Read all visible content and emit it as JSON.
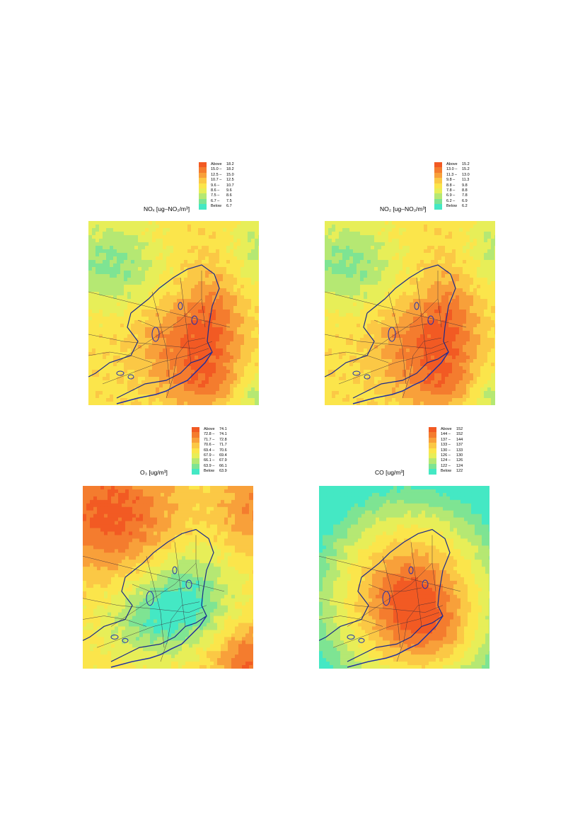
{
  "panels": [
    {
      "id": "nox",
      "title": "NOₓ [ug–NO₂/m³]",
      "legend": [
        {
          "a": "Above",
          "b": "18.2",
          "color": "#f25a23"
        },
        {
          "a": "15.0 –",
          "b": "18.2",
          "color": "#f47c2e"
        },
        {
          "a": "12.5 –",
          "b": "15.0",
          "color": "#f8a03a"
        },
        {
          "a": "10.7 –",
          "b": "12.5",
          "color": "#fbc845"
        },
        {
          "a": "9.6 –",
          "b": "10.7",
          "color": "#fbe54b"
        },
        {
          "a": "8.6 –",
          "b": "9.6",
          "color": "#e7ee58"
        },
        {
          "a": "7.5 –",
          "b": "8.6",
          "color": "#b5e873"
        },
        {
          "a": "6.7 –",
          "b": "7.5",
          "color": "#7ee493"
        },
        {
          "a": "Below",
          "b": "6.7",
          "color": "#44e8c4"
        }
      ]
    },
    {
      "id": "no2",
      "title": "NO₂ [ug–NO₂/m³]",
      "legend": [
        {
          "a": "Above",
          "b": "15.2",
          "color": "#f25a23"
        },
        {
          "a": "13.0 –",
          "b": "15.2",
          "color": "#f47c2e"
        },
        {
          "a": "11.3 –",
          "b": "13.0",
          "color": "#f8a03a"
        },
        {
          "a": "9.8 –",
          "b": "11.3",
          "color": "#fbc845"
        },
        {
          "a": "8.8 –",
          "b": "9.8",
          "color": "#fbe54b"
        },
        {
          "a": "7.8 –",
          "b": "8.8",
          "color": "#e7ee58"
        },
        {
          "a": "6.9 –",
          "b": "7.8",
          "color": "#b5e873"
        },
        {
          "a": "6.2 –",
          "b": "6.9",
          "color": "#7ee493"
        },
        {
          "a": "Below",
          "b": "6.2",
          "color": "#44e8c4"
        }
      ]
    },
    {
      "id": "o3",
      "title": "O₃ [ug/m³]",
      "legend": [
        {
          "a": "Above",
          "b": "74.1",
          "color": "#f25a23"
        },
        {
          "a": "72.8 –",
          "b": "74.1",
          "color": "#f47c2e"
        },
        {
          "a": "71.7 –",
          "b": "72.8",
          "color": "#f8a03a"
        },
        {
          "a": "70.6 –",
          "b": "71.7",
          "color": "#fbc845"
        },
        {
          "a": "69.4 –",
          "b": "70.6",
          "color": "#fbe54b"
        },
        {
          "a": "67.9 –",
          "b": "69.4",
          "color": "#e7ee58"
        },
        {
          "a": "66.1 –",
          "b": "67.9",
          "color": "#b5e873"
        },
        {
          "a": "63.9 –",
          "b": "66.1",
          "color": "#7ee493"
        },
        {
          "a": "Below",
          "b": "63.9",
          "color": "#44e8c4"
        }
      ]
    },
    {
      "id": "co",
      "title": "CO [ug/m³]",
      "legend": [
        {
          "a": "Above",
          "b": "152",
          "color": "#f25a23"
        },
        {
          "a": "144 –",
          "b": "152",
          "color": "#f47c2e"
        },
        {
          "a": "137 –",
          "b": "144",
          "color": "#f8a03a"
        },
        {
          "a": "133 –",
          "b": "137",
          "color": "#fbc845"
        },
        {
          "a": "130 –",
          "b": "133",
          "color": "#fbe54b"
        },
        {
          "a": "126 –",
          "b": "130",
          "color": "#e7ee58"
        },
        {
          "a": "124 –",
          "b": "126",
          "color": "#b5e873"
        },
        {
          "a": "122 –",
          "b": "124",
          "color": "#7ee493"
        },
        {
          "a": "Below",
          "b": "122",
          "color": "#44e8c4"
        }
      ]
    }
  ]
}
